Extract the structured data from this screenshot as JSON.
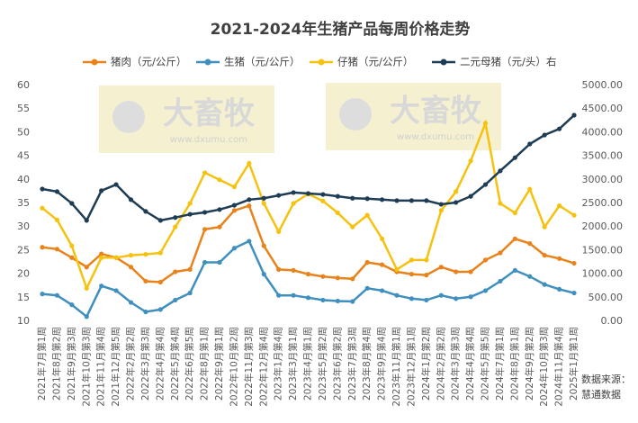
{
  "chart_data": {
    "type": "line",
    "title": "2021-2024年生猪产品每周价格走势",
    "source": "数据来源：慧通数据",
    "watermark": {
      "text": "大畜牧",
      "url": "www.dxumu.com"
    },
    "categories": [
      "2021年7月第1周",
      "2021年8月第2周",
      "2021年9月第3周",
      "2021年10月第3周",
      "2021年11月第4周",
      "2021年12月第5周",
      "2022年2月第2周",
      "2022年3月第3周",
      "2022年4月第4周",
      "2022年5月第4周",
      "2022年6月第5周",
      "2022年8月第1周",
      "2022年9月第1周",
      "2022年10月第2周",
      "2022年11月第3周",
      "2022年12月第4周",
      "2023年1月第4周",
      "2023年3月第1周",
      "2023年4月第1周",
      "2023年5月第2周",
      "2023年6月第2周",
      "2023年7月第3周",
      "2023年8月第4周",
      "2023年9月第4周",
      "2023年11月第1周",
      "2023年12月第1周",
      "2024年1月第2周",
      "2024年2月第2周",
      "2024年3月第3周",
      "2024年4月第4周",
      "2024年5月第5周",
      "2024年7月第1周",
      "2024年8月第1周",
      "2024年9月第2周",
      "2024年10月第3周",
      "2024年11月第4周",
      "2025年1月第1周"
    ],
    "series": [
      {
        "name": "猪肉（元/公斤）",
        "color": "#e8831c",
        "values": [
          25.7,
          25.3,
          23.5,
          21.5,
          24.3,
          23.5,
          21.5,
          18.5,
          18.3,
          20.5,
          21,
          29.5,
          30,
          33.5,
          34.5,
          26,
          21,
          20.8,
          20,
          19.5,
          19.2,
          19,
          22.5,
          22,
          20.5,
          20,
          19.8,
          21.5,
          20.5,
          20.5,
          23,
          24.5,
          27.5,
          26.5,
          24,
          23.3,
          22.3
        ]
      },
      {
        "name": "生猪（元/公斤）",
        "color": "#3f8fbf",
        "values": [
          15.8,
          15.5,
          13.5,
          11,
          17.5,
          16.5,
          14,
          12,
          12.5,
          14.5,
          16,
          22.5,
          22.5,
          25.5,
          27,
          20,
          15.5,
          15.5,
          15,
          14.5,
          14.3,
          14.2,
          17,
          16.5,
          15.5,
          14.8,
          14.5,
          15.5,
          14.8,
          15.2,
          16.5,
          18.5,
          20.8,
          19.5,
          17.8,
          16.8,
          16
        ]
      },
      {
        "name": "仔猪（元/公斤）",
        "color": "#f5c20f",
        "values": [
          34,
          31.5,
          26,
          17,
          23.5,
          23.5,
          24,
          24.2,
          24.5,
          30,
          35,
          41.5,
          40,
          38.5,
          43.5,
          35,
          29,
          35,
          37,
          35.5,
          33,
          30,
          32.5,
          27.5,
          21,
          23,
          23,
          33.5,
          37.5,
          44,
          52,
          35,
          33,
          38,
          30,
          34.5,
          32.5
        ]
      },
      {
        "name": "二元母猪（元/头）右",
        "color": "#1e3d55",
        "axis": "y2",
        "values": [
          2805,
          2750,
          2500,
          2140,
          2770,
          2900,
          2580,
          2330,
          2140,
          2200,
          2270,
          2310,
          2370,
          2460,
          2580,
          2610,
          2670,
          2730,
          2710,
          2690,
          2650,
          2610,
          2600,
          2580,
          2560,
          2560,
          2560,
          2480,
          2520,
          2650,
          2900,
          3190,
          3470,
          3760,
          3950,
          4080,
          4370
        ]
      }
    ],
    "ylim": [
      10,
      60
    ],
    "yticks": [
      10,
      15,
      20,
      25,
      30,
      35,
      40,
      45,
      50,
      55,
      60
    ],
    "y2lim": [
      0,
      5000
    ],
    "y2ticks": [
      {
        "value": 0,
        "label": "0.00"
      },
      {
        "value": 500,
        "label": "500.00"
      },
      {
        "value": 1000,
        "label": "1000.00"
      },
      {
        "value": 1500,
        "label": "1500.00"
      },
      {
        "value": 2000,
        "label": "2000.00"
      },
      {
        "value": 2500,
        "label": "2500.00"
      },
      {
        "value": 3000,
        "label": "3000.00"
      },
      {
        "value": 3500,
        "label": "3500.00"
      },
      {
        "value": 4000,
        "label": "4000.00"
      },
      {
        "value": 4500,
        "label": "4500.00"
      },
      {
        "value": 5000,
        "label": "5000.00"
      }
    ],
    "grid": false,
    "legend": "top"
  }
}
